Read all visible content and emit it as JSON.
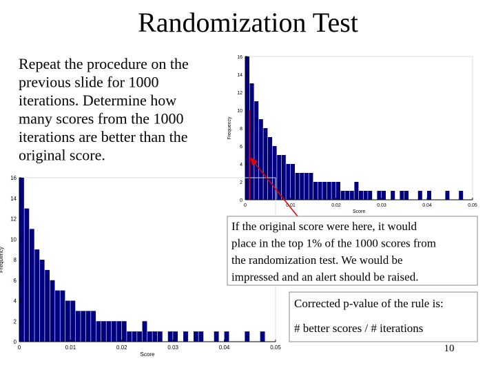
{
  "title": "Randomization Test",
  "body_lines": [
    "Repeat the procedure on the",
    "previous slide for 1000",
    "iterations.  Determine how",
    "many scores from the 1000",
    "iterations are better than the",
    "original score."
  ],
  "callout_lines": [
    "If the original score were here, it would",
    "place in the top 1% of the 1000 scores from",
    "the randomization test. We would be",
    "impressed and an alert should be raised."
  ],
  "formula_lines": [
    "Corrected p-value of the rule is:",
    "# better scores / # iterations"
  ],
  "page_number": "10",
  "chart_data": [
    {
      "type": "histogram",
      "xlabel": "Score",
      "ylabel": "Frequency",
      "color": "#000080",
      "bins": [
        0,
        0.001,
        0.002,
        0.003,
        0.004,
        0.005,
        0.006,
        0.007,
        0.008,
        0.009,
        0.01,
        0.011,
        0.012,
        0.013,
        0.014,
        0.015,
        0.016,
        0.017,
        0.018,
        0.019,
        0.02,
        0.021,
        0.022,
        0.023,
        0.024,
        0.025,
        0.026,
        0.027,
        0.028,
        0.029,
        0.03,
        0.031,
        0.032,
        0.033,
        0.034,
        0.035,
        0.036,
        0.037,
        0.038,
        0.039,
        0.04,
        0.041,
        0.042,
        0.043,
        0.044,
        0.045,
        0.046,
        0.047,
        0.048,
        0.049,
        0.05
      ],
      "values": [
        16,
        13,
        11,
        9,
        8,
        7,
        6,
        5,
        5,
        4,
        4,
        3,
        3,
        3,
        3,
        2,
        2,
        2,
        2,
        2,
        2,
        1,
        1,
        1,
        2,
        1,
        1,
        1,
        0,
        1,
        1,
        0,
        1,
        0,
        1,
        1,
        0,
        0,
        1,
        0,
        1,
        0,
        0,
        0,
        1,
        0,
        0,
        1,
        0,
        0
      ],
      "xlim": [
        0,
        0.05
      ],
      "xticks": [
        0,
        0.01,
        0.02,
        0.03,
        0.04,
        0.05
      ],
      "ylim": [
        0,
        16
      ],
      "yticks": [
        0,
        2,
        4,
        6,
        8,
        10,
        12,
        14,
        16
      ]
    },
    {
      "type": "histogram",
      "xlabel": "Score",
      "ylabel": "Frequency",
      "color": "#000080",
      "bins": [
        0,
        0.001,
        0.002,
        0.003,
        0.004,
        0.005,
        0.006,
        0.007,
        0.008,
        0.009,
        0.01,
        0.011,
        0.012,
        0.013,
        0.014,
        0.015,
        0.016,
        0.017,
        0.018,
        0.019,
        0.02,
        0.021,
        0.022,
        0.023,
        0.024,
        0.025,
        0.026,
        0.027,
        0.028,
        0.029,
        0.03,
        0.031,
        0.032,
        0.033,
        0.034,
        0.035,
        0.036,
        0.037,
        0.038,
        0.039,
        0.04,
        0.041,
        0.042,
        0.043,
        0.044,
        0.045,
        0.046,
        0.047,
        0.048,
        0.049,
        0.05
      ],
      "values": [
        16,
        13,
        11,
        9,
        8,
        7,
        6,
        5,
        5,
        4,
        4,
        3,
        3,
        3,
        3,
        2,
        2,
        2,
        2,
        2,
        2,
        1,
        1,
        1,
        2,
        1,
        1,
        1,
        0,
        1,
        1,
        0,
        1,
        0,
        1,
        1,
        0,
        0,
        1,
        0,
        1,
        0,
        0,
        0,
        1,
        0,
        0,
        1,
        0,
        0
      ],
      "xlim": [
        0,
        0.05
      ],
      "xticks": [
        0,
        0.01,
        0.02,
        0.03,
        0.04,
        0.05
      ],
      "ylim": [
        0,
        16
      ],
      "yticks": [
        0,
        2,
        4,
        6,
        8,
        10,
        12,
        14,
        16
      ]
    }
  ]
}
